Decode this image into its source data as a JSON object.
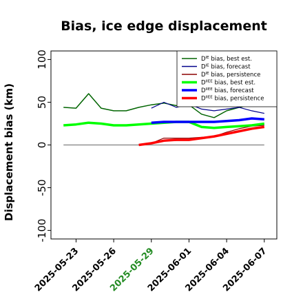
{
  "chart_data": {
    "type": "line",
    "title": "Bias, ice edge displacement",
    "ylabel": "Displacement bias (km)",
    "xlabel": "",
    "ylim": [
      -110,
      110
    ],
    "yticks": [
      -100,
      -50,
      0,
      50,
      100
    ],
    "xlim": [
      "2025-05-21",
      "2025-06-08"
    ],
    "x_ticks": [
      {
        "label": "2025-05-23",
        "color": "#000000"
      },
      {
        "label": "2025-05-26",
        "color": "#000000"
      },
      {
        "label": "2025-05-29",
        "color": "#228b22"
      },
      {
        "label": "2025-06-01",
        "color": "#000000"
      },
      {
        "label": "2025-06-04",
        "color": "#000000"
      },
      {
        "label": "2025-06-07",
        "color": "#000000"
      }
    ],
    "zero_line": {
      "y": 0,
      "color": "#808080"
    },
    "legend_position": "top-right",
    "series": [
      {
        "name_base": "D",
        "name_sup": "IE",
        "name_rest": " bias, best est.",
        "color": "#006400",
        "width": 1.5,
        "x": [
          "2025-05-22",
          "2025-05-23",
          "2025-05-24",
          "2025-05-25",
          "2025-05-26",
          "2025-05-27",
          "2025-05-28",
          "2025-05-29",
          "2025-05-30",
          "2025-05-31",
          "2025-06-01",
          "2025-06-02",
          "2025-06-03",
          "2025-06-04",
          "2025-06-05",
          "2025-06-06",
          "2025-06-07"
        ],
        "y": [
          44,
          43,
          60,
          43,
          40,
          40,
          44,
          47,
          49,
          46,
          47,
          36,
          32,
          40,
          44,
          47,
          47
        ]
      },
      {
        "name_base": "D",
        "name_sup": "IE",
        "name_rest": " bias, forecast",
        "color": "#00008b",
        "width": 1.2,
        "x": [
          "2025-05-29",
          "2025-05-30",
          "2025-05-31",
          "2025-06-01",
          "2025-06-02",
          "2025-06-03",
          "2025-06-04",
          "2025-06-05",
          "2025-06-06",
          "2025-06-07"
        ],
        "y": [
          43,
          50,
          44,
          48,
          42,
          40,
          42,
          44,
          40,
          37
        ]
      },
      {
        "name_base": "D",
        "name_sup": "IE",
        "name_rest": " bias, persistence",
        "color": "#8b0000",
        "width": 1.2,
        "x": [
          "2025-05-28",
          "2025-05-29",
          "2025-05-30",
          "2025-05-31",
          "2025-06-01",
          "2025-06-02",
          "2025-06-03",
          "2025-06-04",
          "2025-06-05",
          "2025-06-06",
          "2025-06-07"
        ],
        "y": [
          0,
          2,
          8,
          8,
          8,
          9,
          10,
          15,
          19,
          22,
          23
        ]
      },
      {
        "name_base": "D",
        "name_sup": "IIEE",
        "name_rest": " bias, best est.",
        "color": "#00ff00",
        "width": 3.5,
        "x": [
          "2025-05-22",
          "2025-05-23",
          "2025-05-24",
          "2025-05-25",
          "2025-05-26",
          "2025-05-27",
          "2025-05-28",
          "2025-05-29",
          "2025-05-30",
          "2025-05-31",
          "2025-06-01",
          "2025-06-02",
          "2025-06-03",
          "2025-06-04",
          "2025-06-05",
          "2025-06-06",
          "2025-06-07"
        ],
        "y": [
          23,
          24,
          26,
          25,
          23,
          23,
          24,
          25,
          26,
          27,
          27,
          21,
          20,
          21,
          22,
          23,
          25
        ]
      },
      {
        "name_base": "D",
        "name_sup": "IIEE",
        "name_rest": " bias, forecast",
        "color": "#0000ff",
        "width": 3.5,
        "x": [
          "2025-05-29",
          "2025-05-30",
          "2025-05-31",
          "2025-06-01",
          "2025-06-02",
          "2025-06-03",
          "2025-06-04",
          "2025-06-05",
          "2025-06-06",
          "2025-06-07"
        ],
        "y": [
          26,
          27,
          27,
          27,
          27,
          27,
          28,
          29,
          31,
          30
        ]
      },
      {
        "name_base": "D",
        "name_sup": "IIEE",
        "name_rest": " bias, persistence",
        "color": "#ff0000",
        "width": 3.5,
        "x": [
          "2025-05-28",
          "2025-05-29",
          "2025-05-30",
          "2025-05-31",
          "2025-06-01",
          "2025-06-02",
          "2025-06-03",
          "2025-06-04",
          "2025-06-05",
          "2025-06-06",
          "2025-06-07"
        ],
        "y": [
          0,
          2,
          5,
          6,
          6,
          8,
          10,
          13,
          16,
          19,
          21
        ]
      }
    ]
  }
}
